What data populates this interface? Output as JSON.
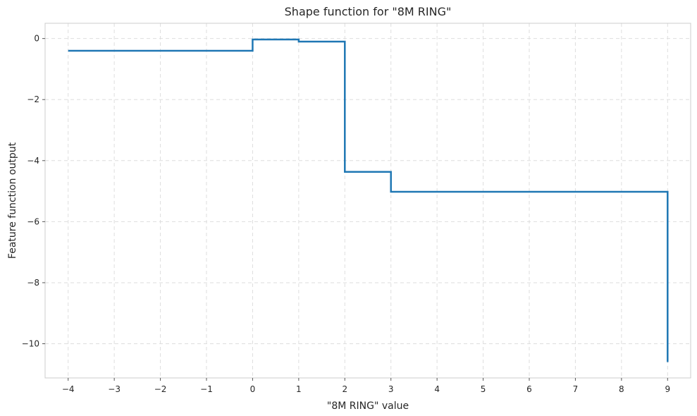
{
  "chart_data": {
    "type": "line",
    "title": "Shape function for \"8M RING\"",
    "xlabel": "\"8M RING\" value",
    "ylabel": "Feature function output",
    "xlim": [
      -4.5,
      9.5
    ],
    "ylim": [
      -11.12,
      0.5
    ],
    "x_ticks": [
      -4,
      -3,
      -2,
      -1,
      0,
      1,
      2,
      3,
      4,
      5,
      6,
      7,
      8,
      9
    ],
    "x_tick_labels": [
      "−4",
      "−3",
      "−2",
      "−1",
      "0",
      "1",
      "2",
      "3",
      "4",
      "5",
      "6",
      "7",
      "8",
      "9"
    ],
    "y_ticks": [
      0,
      -2,
      -4,
      -6,
      -8,
      -10
    ],
    "y_tick_labels": [
      "0",
      "−2",
      "−4",
      "−6",
      "−8",
      "−10"
    ],
    "grid": true,
    "step": "post",
    "series": [
      {
        "color": "#1f77b4",
        "x": [
          -4,
          0,
          1,
          2,
          3,
          9,
          9
        ],
        "y": [
          -0.4,
          -0.03,
          -0.1,
          -4.37,
          -5.02,
          -5.02,
          -10.6
        ]
      }
    ]
  }
}
